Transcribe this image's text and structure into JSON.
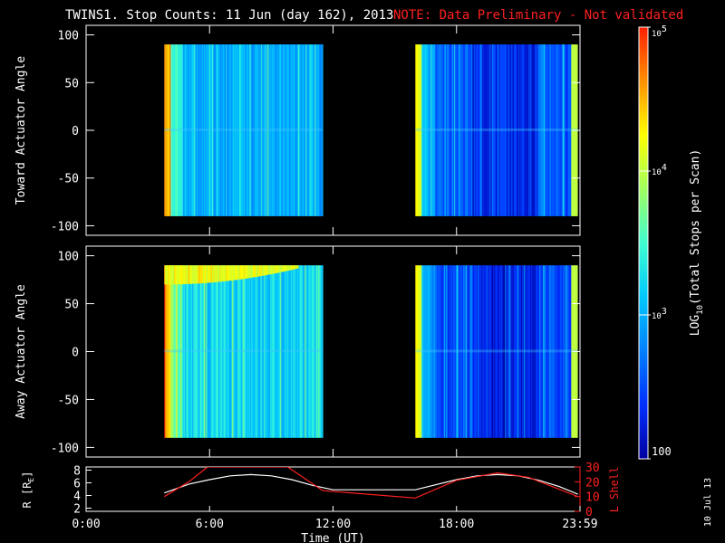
{
  "header": {
    "title": "TWINS1. Stop Counts: 11 Jun (day 162), 2013",
    "note": "NOTE: Data Preliminary - Not validated"
  },
  "side_date": "10 Jul 13",
  "colorbar": {
    "label": "LOG10(Total Stops per Scan)",
    "label_base": "LOG",
    "label_sub": "10",
    "label_rest": "(Total Stops per Scan)",
    "tick_labels": [
      "100",
      "10^3",
      "10^4",
      "10^5"
    ],
    "tick_values": [
      100,
      1000,
      10000,
      100000
    ],
    "scale": "log",
    "range": [
      100,
      100000
    ]
  },
  "colors": {
    "background": "#000000",
    "axes": "#ffffff",
    "note": "#ff2020",
    "l_shell": "#ff2020",
    "r_line": "#ffffff",
    "colormap": [
      "#0000a0",
      "#0030ff",
      "#0080ff",
      "#00c8ff",
      "#40ffd0",
      "#a0ff60",
      "#ffff00",
      "#ff9000",
      "#ff2000"
    ]
  },
  "chart_data": [
    {
      "type": "heatmap",
      "ylabel": "Toward Actuator Angle",
      "ylim": [
        -110,
        110
      ],
      "y_ticks": [
        100,
        50,
        0,
        -50,
        -100
      ],
      "xlim": [
        0,
        24
      ],
      "x_ticks": [
        "0:00",
        "6:00",
        "12:00",
        "18:00",
        "23:59"
      ],
      "blocks": [
        {
          "x_start": 3.8,
          "x_end": 11.5,
          "y_range": [
            -90,
            90
          ],
          "median_log10": 3.0,
          "edge_log10": 4.6
        },
        {
          "x_start": 16.0,
          "x_end": 23.9,
          "y_range": [
            -90,
            90
          ],
          "median_log10": 2.6,
          "edge_log10": 4.3
        }
      ]
    },
    {
      "type": "heatmap",
      "ylabel": "Away Actuator Angle",
      "ylim": [
        -110,
        110
      ],
      "y_ticks": [
        100,
        50,
        0,
        -50,
        -100
      ],
      "xlim": [
        0,
        24
      ],
      "x_ticks": [
        "0:00",
        "6:00",
        "12:00",
        "18:00",
        "23:59"
      ],
      "blocks": [
        {
          "x_start": 3.8,
          "x_end": 11.5,
          "y_range": [
            -90,
            90
          ],
          "median_log10": 3.2,
          "edge_log10": 4.6,
          "high_band": {
            "angle": [
              70,
              90
            ],
            "log10": 4.2
          }
        },
        {
          "x_start": 16.0,
          "x_end": 23.9,
          "y_range": [
            -90,
            90
          ],
          "median_log10": 2.5,
          "edge_log10": 4.3
        }
      ]
    },
    {
      "type": "line",
      "xlabel": "Time (UT)",
      "xlim": [
        0,
        24
      ],
      "x_ticks": [
        "0:00",
        "6:00",
        "12:00",
        "18:00",
        "23:59"
      ],
      "ylabel_left": "R [RE]",
      "ylabel_left_base": "R [R",
      "ylabel_left_sub": "E",
      "ylabel_left_end": "]",
      "ylim_left": [
        1.5,
        8.5
      ],
      "y_ticks_left": [
        "8",
        "6",
        "4",
        "2"
      ],
      "ylabel_right": "L Shell",
      "ylim_right": [
        0,
        30
      ],
      "y_ticks_right": [
        "30",
        "20",
        "10",
        "0"
      ],
      "series": [
        {
          "name": "R [RE]",
          "x": [
            3.8,
            5,
            6,
            7,
            8,
            9,
            10,
            11,
            12,
            14,
            16,
            17,
            18,
            19,
            20,
            21,
            22,
            23,
            23.9
          ],
          "y": [
            4.4,
            5.8,
            6.5,
            7.1,
            7.3,
            7.1,
            6.5,
            5.6,
            4.9,
            4.9,
            4.9,
            5.7,
            6.5,
            7.1,
            7.3,
            7.1,
            6.4,
            5.4,
            4.2
          ]
        },
        {
          "name": "L Shell",
          "x": [
            3.8,
            5,
            5.9,
            9.8,
            11.5,
            16.0,
            18.0,
            20.0,
            21.5,
            23.9
          ],
          "y": [
            10,
            20,
            30,
            30,
            14,
            9,
            21,
            26,
            23,
            10
          ]
        }
      ]
    }
  ]
}
